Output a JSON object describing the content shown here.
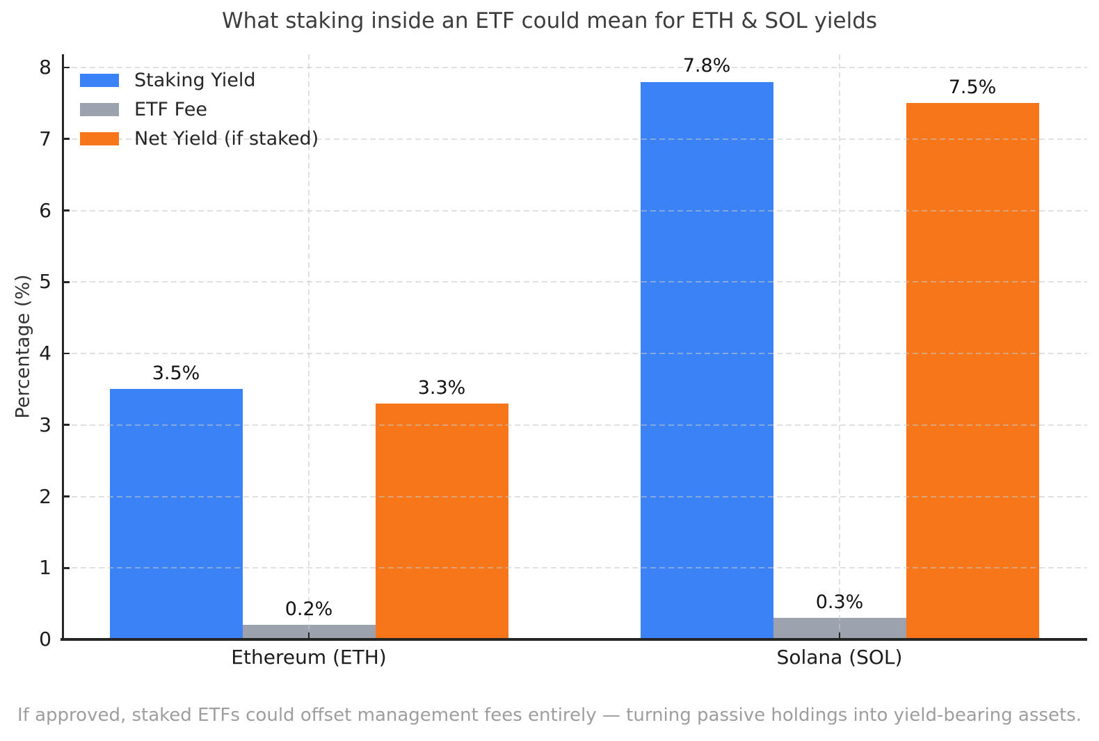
{
  "chart_data": {
    "type": "bar",
    "title": "What staking inside an ETF could mean for ETH & SOL yields",
    "caption": "If approved, staked ETFs could offset management fees entirely — turning passive holdings into yield-bearing assets.",
    "ylabel": "Percentage (%)",
    "ylim": [
      0,
      8
    ],
    "yticks": [
      0,
      1,
      2,
      3,
      4,
      5,
      6,
      7,
      8
    ],
    "grid": true,
    "grid_style": "dashed",
    "legend_position": "upper left",
    "categories": [
      "Ethereum (ETH)",
      "Solana (SOL)"
    ],
    "series": [
      {
        "name": "Staking Yield",
        "color": "#3b82f6",
        "values": [
          3.5,
          7.8
        ],
        "data_labels": [
          "3.5%",
          "7.8%"
        ]
      },
      {
        "name": "ETF Fee",
        "color": "#9ca3af",
        "values": [
          0.2,
          0.3
        ],
        "data_labels": [
          "0.2%",
          "0.3%"
        ]
      },
      {
        "name": "Net Yield (if staked)",
        "color": "#f77619",
        "values": [
          3.3,
          7.5
        ],
        "data_labels": [
          "3.3%",
          "7.5%"
        ]
      }
    ],
    "colors": {
      "axis": "#262626",
      "tick_label": "#1c1c1c",
      "title": "#3d3d3d",
      "value_label": "#111111",
      "caption": "#9e9e9e"
    }
  }
}
